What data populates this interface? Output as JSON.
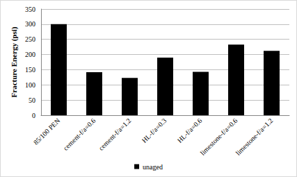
{
  "chart_data": {
    "type": "bar",
    "y_label": "Fracture Energy (psi)",
    "categories": [
      "85/100 PEN",
      "cement-f/a=0.6",
      "cement-f/a=1.2",
      "HL-f/a=0.3",
      "HL-f/a=0.6",
      "limestone-f/a=0.6",
      "limestone-f/a=1.2"
    ],
    "series": [
      {
        "name": "unaged",
        "color": "#000000",
        "values": [
          300,
          142,
          123,
          190,
          143,
          233,
          212
        ]
      }
    ],
    "ylim": [
      0,
      350
    ],
    "yticks": [
      0,
      50,
      100,
      150,
      200,
      250,
      300,
      350
    ],
    "grid": true,
    "legend": "bottom"
  }
}
